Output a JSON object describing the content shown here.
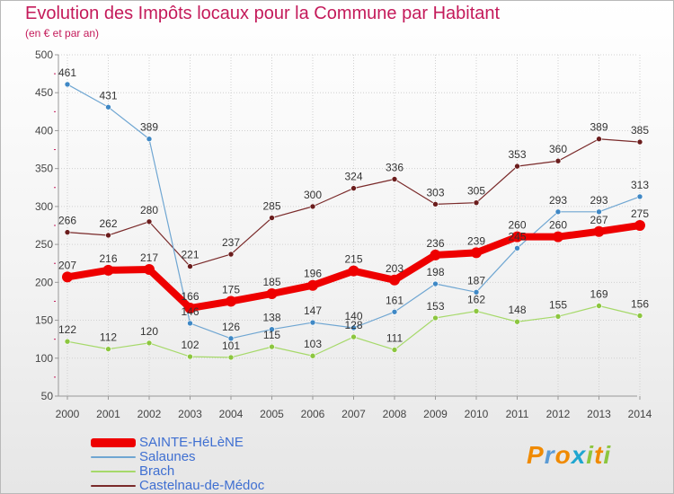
{
  "header": {
    "title": "Evolution des Impôts locaux pour la Commune par Habitant",
    "subtitle": "(en € et par an)"
  },
  "colors": {
    "title": "#c41a5a",
    "grid": "#d0d0d0",
    "axis": "#999999"
  },
  "logo": {
    "text": "Proxiti",
    "letters": [
      {
        "ch": "P",
        "color": "#f08a00"
      },
      {
        "ch": "r",
        "color": "#5b9bd5"
      },
      {
        "ch": "o",
        "color": "#f08a00"
      },
      {
        "ch": "x",
        "color": "#1fa6d0"
      },
      {
        "ch": "i",
        "color": "#8cc63f"
      },
      {
        "ch": "t",
        "color": "#f08a00"
      },
      {
        "ch": "i",
        "color": "#8cc63f"
      }
    ]
  },
  "chart_data": {
    "type": "line",
    "title": "Evolution des Impôts locaux pour la Commune par Habitant",
    "subtitle": "(en € et par an)",
    "xlabel": "",
    "ylabel": "",
    "x": [
      "2000",
      "2001",
      "2002",
      "2003",
      "2004",
      "2005",
      "2006",
      "2007",
      "2008",
      "2009",
      "2010",
      "2011",
      "2012",
      "2013",
      "2014"
    ],
    "ylim": [
      50,
      500
    ],
    "yticks": [
      50,
      100,
      150,
      200,
      250,
      300,
      350,
      400,
      450,
      500
    ],
    "yticks_labels": [
      "50",
      "100",
      "150",
      "200",
      "250",
      "300",
      "350",
      "400",
      "450",
      "500"
    ],
    "grid": true,
    "legend_position": "bottom-left",
    "series": [
      {
        "name": "Castelnau-de-Médoc",
        "color": "#7a2a2a",
        "dot": "#6b1d1d",
        "width": 1.2,
        "values": [
          266,
          262,
          280,
          221,
          237,
          285,
          300,
          324,
          336,
          303,
          305,
          353,
          360,
          389,
          385
        ]
      },
      {
        "name": "Salaunes",
        "color": "#6fa6d2",
        "dot": "#3f88c5",
        "width": 1.2,
        "values": [
          461,
          431,
          389,
          146,
          126,
          138,
          147,
          140,
          161,
          198,
          187,
          245,
          293,
          293,
          313
        ]
      },
      {
        "name": "Brach",
        "color": "#a6d96a",
        "dot": "#8cc63f",
        "width": 1.2,
        "values": [
          122,
          112,
          120,
          102,
          101,
          115,
          103,
          128,
          111,
          153,
          162,
          148,
          155,
          169,
          156
        ]
      },
      {
        "name": "SAINTE-HéLèNE",
        "color": "#ee0000",
        "dot": "#ee0000",
        "width": 8,
        "values": [
          207,
          216,
          217,
          166,
          175,
          185,
          196,
          215,
          203,
          236,
          239,
          260,
          260,
          267,
          275
        ]
      }
    ],
    "data_labels": {
      "Castelnau-de-Médoc": [
        "266",
        "262",
        "280",
        "221",
        "237",
        "285",
        "300",
        "324",
        "336",
        "303",
        "305",
        "353",
        "360",
        "389",
        "385"
      ],
      "Salaunes": [
        "461",
        "431",
        "389",
        "146",
        "126",
        "138",
        "147",
        "140",
        "161",
        "198",
        "187",
        "245",
        "293",
        "293",
        "313"
      ],
      "Brach": [
        "122",
        "112",
        "120",
        "102",
        "101",
        "115",
        "103",
        "128",
        "111",
        "153",
        "162",
        "148",
        "155",
        "169",
        "156"
      ],
      "SAINTE-HéLèNE": [
        "207",
        "216",
        "217",
        "166",
        "175",
        "185",
        "196",
        "215",
        "203",
        "236",
        "239",
        "260",
        "260",
        "267",
        "275"
      ]
    },
    "legend": [
      "SAINTE-HéLèNE",
      "Salaunes",
      "Brach",
      "Castelnau-de-Médoc"
    ]
  }
}
